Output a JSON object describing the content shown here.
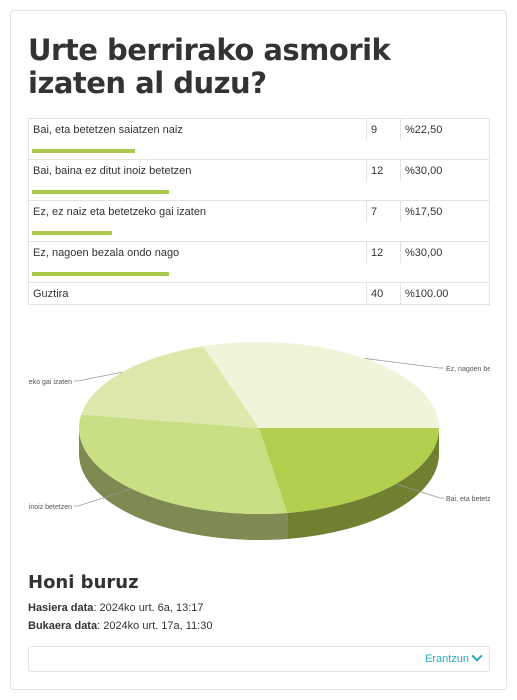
{
  "poll": {
    "question": "Urte berrirako asmorik izaten al duzu?",
    "answers": [
      {
        "label": "Bai, eta betetzen saiatzen naiz",
        "count": "9",
        "percent": "%22,50",
        "fraction": 0.225
      },
      {
        "label": "Bai, baina ez ditut inoiz betetzen",
        "count": "12",
        "percent": "%30,00",
        "fraction": 0.3
      },
      {
        "label": "Ez, ez naiz eta betetzeko gai izaten",
        "count": "7",
        "percent": "%17,50",
        "fraction": 0.175
      },
      {
        "label": "Ez, nagoen bezala ondo nago",
        "count": "12",
        "percent": "%30,00",
        "fraction": 0.3
      }
    ],
    "total": {
      "label": "Guztira",
      "count": "40",
      "percent": "%100.00"
    }
  },
  "chart_data": {
    "type": "pie",
    "categories": [
      "Bai, eta betetzen saiatzen naiz",
      "Bai, baina ez ditut inoiz betetzen",
      "Ez, ez naiz eta betetzeko gai izaten",
      "Ez, nagoen bezala ondo nago"
    ],
    "values": [
      22.5,
      30.0,
      17.5,
      30.0
    ],
    "visible_labels": [
      "Bai, eta betetz",
      "inoiz betetzen",
      "zeko gai izaten",
      "Ez, nagoen be"
    ],
    "colors": [
      "#b3cf4e",
      "#c9df83",
      "#dde9ac",
      "#eff5d8"
    ]
  },
  "about": {
    "title": "Honi buruz",
    "start_label": "Hasiera data",
    "start_value": ": 2024ko urt. 6a, 13:17",
    "end_label": "Bukaera data",
    "end_value": ": 2024ko urt. 17a, 11:30"
  },
  "actions": {
    "answer_label": "Erantzun"
  }
}
